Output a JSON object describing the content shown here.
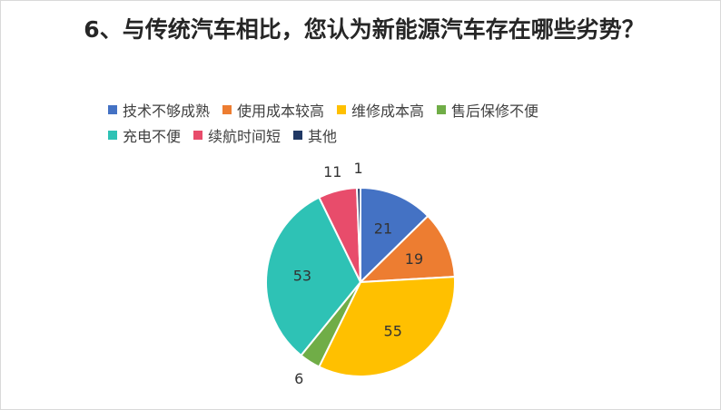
{
  "chart_data": {
    "type": "pie",
    "title": "6、与传统汽车相比，您认为新能源汽车存在哪些劣势？",
    "categories": [
      "技术不够成熟",
      "使用成本较高",
      "维修成本高",
      "售后保修不便",
      "充电不便",
      "续航时间短",
      "其他"
    ],
    "values": [
      21,
      19,
      55,
      6,
      53,
      11,
      1
    ],
    "colors": [
      "#4472c4",
      "#ed7d31",
      "#ffc000",
      "#70ad47",
      "#2ec2b5",
      "#e84c6b",
      "#203864"
    ],
    "legend_position": "top",
    "data_labels": true
  }
}
